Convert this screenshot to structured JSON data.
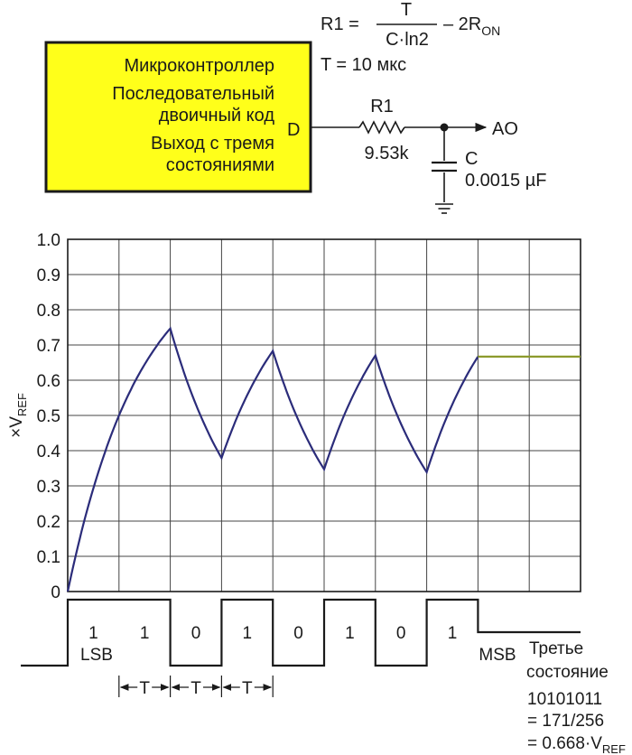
{
  "circuit": {
    "mcu_lines": [
      "Микроконтроллер",
      "Последовательный",
      "двоичный код",
      "Выход с тремя",
      "состояниями"
    ],
    "pin_label": "D",
    "resistor_label": "R1",
    "resistor_value": "9.53k",
    "capacitor_label": "C",
    "capacitor_value": "0.0015 µF",
    "output_label": "AO",
    "formula_lhs": "R1 =",
    "formula_num": "T",
    "formula_den": "C·ln2",
    "formula_tail": "– 2R",
    "formula_sub": "ON",
    "period": "T = 10 мкс",
    "colors": {
      "mcu_fill": "#ffff1a",
      "trace": "#2b2c7a",
      "hold": "#8c9a2c"
    }
  },
  "chart_data": {
    "type": "line",
    "ylabel_main": "×V",
    "ylabel_sub": "REF",
    "ylim": [
      0,
      1.0
    ],
    "y_ticks": [
      "0",
      "0.1",
      "0.2",
      "0.3",
      "0.4",
      "0.5",
      "0.6",
      "0.7",
      "0.8",
      "0.9",
      "1.0"
    ],
    "x_period_units": 10,
    "grid": true,
    "series": [
      {
        "x": [
          0,
          1,
          2,
          3,
          4,
          5,
          6,
          7,
          8,
          8.1,
          10
        ],
        "y": [
          0,
          0.5,
          0.747,
          0.379,
          0.683,
          0.347,
          0.67,
          0.339,
          0.667,
          0.667,
          0.667
        ]
      }
    ]
  },
  "bits": {
    "levels": [
      1,
      1,
      0,
      1,
      0,
      1,
      0,
      1
    ],
    "labels": [
      "1",
      "1",
      "0",
      "1",
      "0",
      "1",
      "0",
      "1"
    ],
    "lsb_label": "LSB",
    "msb_label": "MSB",
    "period_label": "T",
    "tristate_lines": [
      "Третье",
      "состояние"
    ],
    "code_lines": [
      "10101011",
      "= 171/256"
    ],
    "code_value_main": "= 0.668·V",
    "code_value_sub": "REF"
  }
}
